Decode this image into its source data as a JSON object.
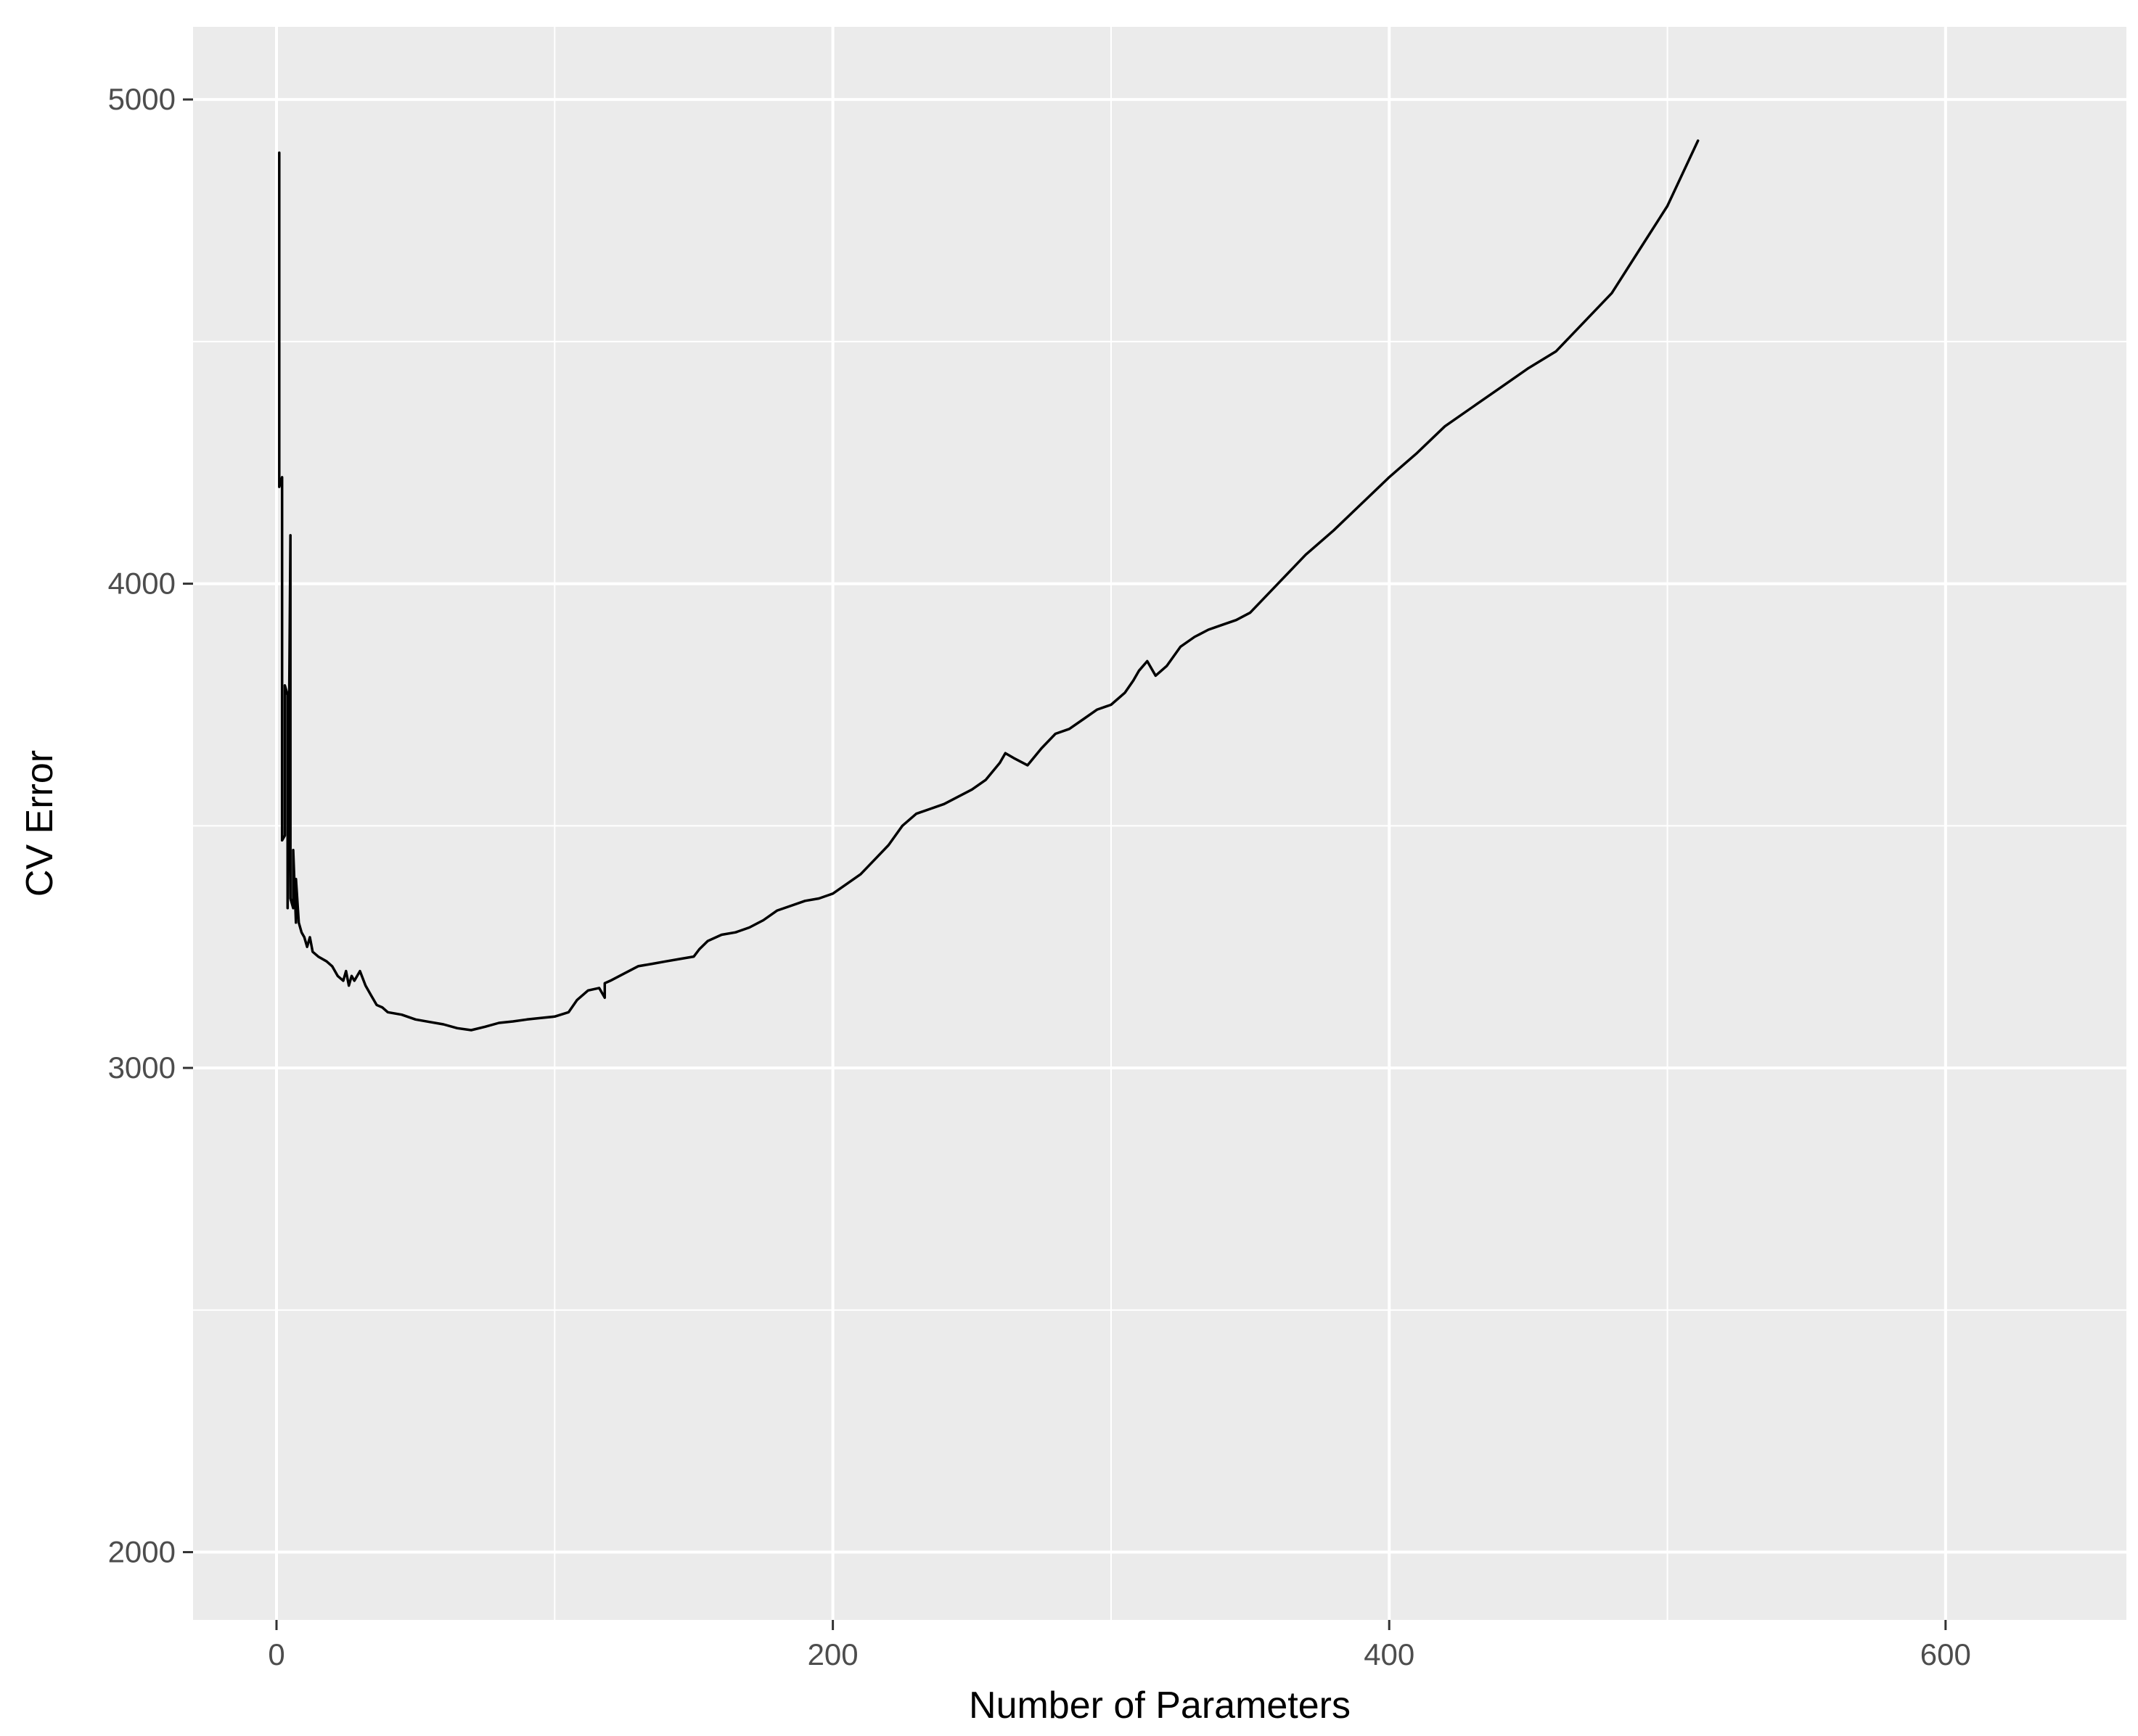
{
  "chart_data": {
    "type": "line",
    "title": "",
    "xlabel": "Number of Parameters",
    "ylabel": "CV Error",
    "xlim": [
      -30,
      665
    ],
    "ylim": [
      1860,
      5150
    ],
    "xticks": [
      0,
      200,
      400,
      600
    ],
    "yticks": [
      2000,
      3000,
      4000,
      5000
    ],
    "x_tick_labels": [
      "0",
      "200",
      "400",
      "600"
    ],
    "y_tick_labels": [
      "2000",
      "3000",
      "4000",
      "5000"
    ],
    "grid": true,
    "legend": "none",
    "colors": {
      "panel_background": "#ebebeb",
      "grid_line": "#ffffff",
      "series_line": "#000000",
      "tick_text": "#4d4d4d",
      "axis_title_text": "#000000"
    },
    "series": [
      {
        "x": [
          1,
          1,
          2,
          2,
          3,
          3,
          4,
          4,
          5,
          5,
          6,
          6,
          7,
          7,
          8,
          9,
          10,
          11,
          12,
          13,
          15,
          18,
          20,
          22,
          24,
          25,
          26,
          27,
          28,
          30,
          32,
          34,
          36,
          38,
          40,
          45,
          50,
          55,
          60,
          65,
          70,
          75,
          80,
          85,
          90,
          95,
          100,
          105,
          108,
          112,
          116,
          118,
          118,
          120,
          125,
          130,
          135,
          140,
          145,
          150,
          152,
          155,
          160,
          165,
          170,
          175,
          180,
          185,
          190,
          195,
          200,
          205,
          210,
          215,
          220,
          225,
          230,
          235,
          240,
          245,
          250,
          255,
          260,
          262,
          265,
          270,
          275,
          280,
          285,
          290,
          295,
          300,
          305,
          308,
          310,
          313,
          316,
          320,
          325,
          330,
          335,
          340,
          345,
          350,
          360,
          370,
          380,
          390,
          400,
          410,
          420,
          430,
          440,
          450,
          460,
          470,
          480,
          490,
          500,
          511
        ],
        "y": [
          4890,
          4200,
          4220,
          3470,
          3480,
          3790,
          3770,
          3330,
          4100,
          3350,
          3330,
          3450,
          3300,
          3390,
          3300,
          3280,
          3270,
          3250,
          3270,
          3240,
          3230,
          3220,
          3210,
          3190,
          3180,
          3200,
          3170,
          3190,
          3180,
          3200,
          3170,
          3150,
          3130,
          3125,
          3115,
          3110,
          3100,
          3095,
          3090,
          3082,
          3078,
          3085,
          3093,
          3096,
          3100,
          3103,
          3106,
          3115,
          3140,
          3160,
          3165,
          3145,
          3175,
          3180,
          3195,
          3210,
          3215,
          3220,
          3225,
          3230,
          3245,
          3262,
          3275,
          3280,
          3290,
          3305,
          3325,
          3335,
          3345,
          3350,
          3360,
          3380,
          3400,
          3430,
          3460,
          3500,
          3525,
          3535,
          3545,
          3560,
          3575,
          3595,
          3630,
          3650,
          3640,
          3625,
          3660,
          3690,
          3700,
          3720,
          3740,
          3750,
          3775,
          3800,
          3820,
          3840,
          3810,
          3830,
          3870,
          3890,
          3905,
          3915,
          3925,
          3940,
          4000,
          4060,
          4110,
          4165,
          4220,
          4270,
          4325,
          4365,
          4405,
          4445,
          4480,
          4540,
          4600,
          4690,
          4780,
          4915
        ]
      }
    ]
  }
}
